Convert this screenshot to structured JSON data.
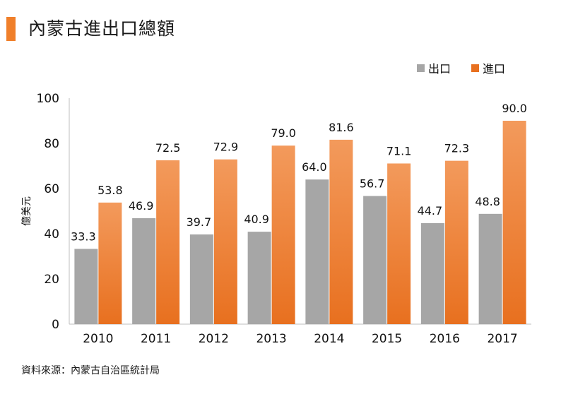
{
  "title": "內蒙古進出口總額",
  "source": "資料來源：內蒙古自治區統計局",
  "colors": {
    "accent": "#f07f2a",
    "export": "#a6a6a6",
    "import_top": "#f39a5c",
    "import_bottom": "#e8701f"
  },
  "chart_data": {
    "type": "bar",
    "title": "內蒙古進出口總額",
    "ylabel": "億美元",
    "xlabel": "",
    "categories": [
      "2010",
      "2011",
      "2012",
      "2013",
      "2014",
      "2015",
      "2016",
      "2017"
    ],
    "series": [
      {
        "name": "出口",
        "values": [
          33.3,
          46.9,
          39.7,
          40.9,
          64.0,
          56.7,
          44.7,
          48.8
        ]
      },
      {
        "name": "進口",
        "values": [
          53.8,
          72.5,
          72.9,
          79.0,
          81.6,
          71.1,
          72.3,
          90.0
        ]
      }
    ],
    "ylim": [
      0,
      100
    ],
    "yticks": [
      0,
      20,
      40,
      60,
      80,
      100
    ],
    "legend_position": "top-right",
    "grid": false
  }
}
